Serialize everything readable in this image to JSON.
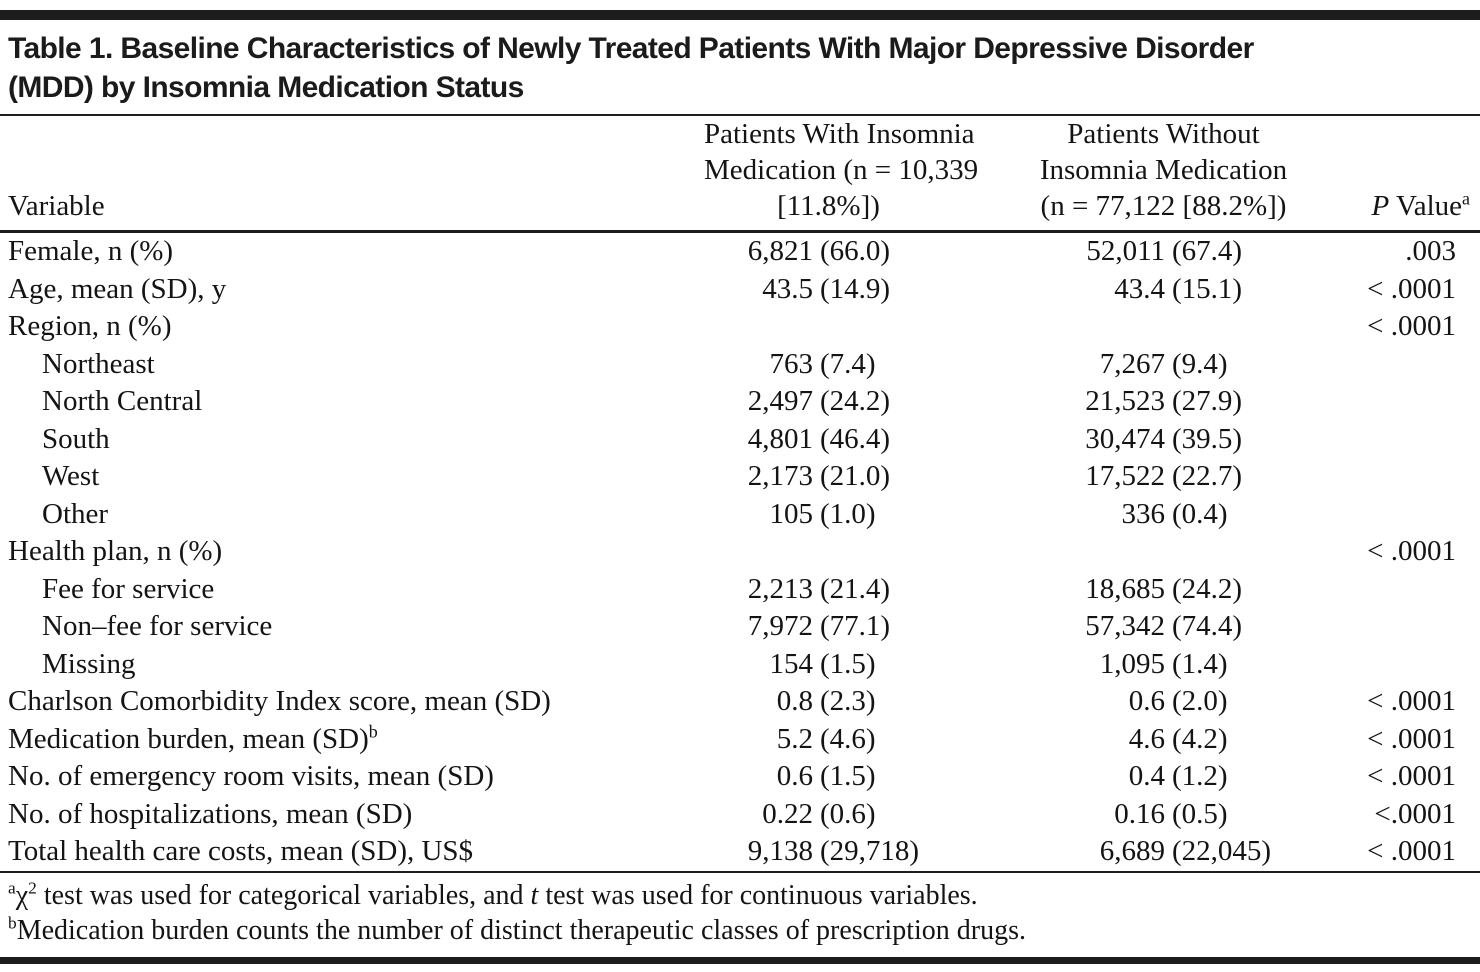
{
  "table": {
    "title_line1": "Table 1. Baseline Characteristics of Newly Treated Patients With Major Depressive Disorder",
    "title_line2": "(MDD) by Insomnia Medication Status",
    "columns": {
      "variable": "Variable",
      "with_med_lines": [
        "Patients With Insomnia",
        "Medication (n = 10,339",
        "[11.8%])"
      ],
      "without_med_lines": [
        "Patients Without",
        "Insomnia Medication",
        "(n = 77,122 [88.2%])"
      ],
      "p_italic": "P",
      "p_rest": " Value",
      "p_sup": "a"
    },
    "rows": [
      {
        "label": "Female, n (%)",
        "label_sup": "",
        "with_n": "6,821",
        "with_p": "(66.0)",
        "without_n": "52,011",
        "without_p": "(67.4)",
        "pvalue": ".003"
      },
      {
        "label": "Age, mean (SD), y",
        "label_sup": "",
        "with_n": "43.5",
        "with_p": "(14.9)",
        "without_n": "43.4",
        "without_p": "(15.1)",
        "pvalue": "< .0001"
      },
      {
        "label": "Region, n (%)",
        "label_sup": "",
        "with_n": "",
        "with_p": "",
        "without_n": "",
        "without_p": "",
        "pvalue": "< .0001"
      },
      {
        "label": "Northeast",
        "label_sup": "",
        "with_n": "763",
        "with_p": "(7.4)",
        "without_n": "7,267",
        "without_p": "(9.4)",
        "pvalue": ""
      },
      {
        "label": "North Central",
        "label_sup": "",
        "with_n": "2,497",
        "with_p": "(24.2)",
        "without_n": "21,523",
        "without_p": "(27.9)",
        "pvalue": ""
      },
      {
        "label": "South",
        "label_sup": "",
        "with_n": "4,801",
        "with_p": "(46.4)",
        "without_n": "30,474",
        "without_p": "(39.5)",
        "pvalue": ""
      },
      {
        "label": "West",
        "label_sup": "",
        "with_n": "2,173",
        "with_p": "(21.0)",
        "without_n": "17,522",
        "without_p": "(22.7)",
        "pvalue": ""
      },
      {
        "label": "Other",
        "label_sup": "",
        "with_n": "105",
        "with_p": "(1.0)",
        "without_n": "336",
        "without_p": "(0.4)",
        "pvalue": ""
      },
      {
        "label": "Health plan, n (%)",
        "label_sup": "",
        "with_n": "",
        "with_p": "",
        "without_n": "",
        "without_p": "",
        "pvalue": "< .0001"
      },
      {
        "label": "Fee for service",
        "label_sup": "",
        "with_n": "2,213",
        "with_p": "(21.4)",
        "without_n": "18,685",
        "without_p": "(24.2)",
        "pvalue": ""
      },
      {
        "label": "Non–fee for service",
        "label_sup": "",
        "with_n": "7,972",
        "with_p": "(77.1)",
        "without_n": "57,342",
        "without_p": "(74.4)",
        "pvalue": ""
      },
      {
        "label": "Missing",
        "label_sup": "",
        "with_n": "154",
        "with_p": "(1.5)",
        "without_n": "1,095",
        "without_p": "(1.4)",
        "pvalue": ""
      },
      {
        "label": "Charlson Comorbidity Index score, mean (SD)",
        "label_sup": "",
        "with_n": "0.8",
        "with_p": "(2.3)",
        "without_n": "0.6",
        "without_p": "(2.0)",
        "pvalue": "< .0001"
      },
      {
        "label": "Medication burden, mean (SD)",
        "label_sup": "b",
        "with_n": "5.2",
        "with_p": "(4.6)",
        "without_n": "4.6",
        "without_p": "(4.2)",
        "pvalue": "< .0001"
      },
      {
        "label": "No. of emergency room visits, mean (SD)",
        "label_sup": "",
        "with_n": "0.6",
        "with_p": "(1.5)",
        "without_n": "0.4",
        "without_p": "(1.2)",
        "pvalue": "< .0001"
      },
      {
        "label": "No. of hospitalizations, mean (SD)",
        "label_sup": "",
        "with_n": "0.22",
        "with_p": "(0.6)",
        "without_n": "0.16",
        "without_p": "(0.5)",
        "pvalue": "<.0001"
      },
      {
        "label": "Total health care costs, mean (SD), US$",
        "label_sup": "",
        "with_n": "9,138",
        "with_p": "(29,718)",
        "without_n": "6,689",
        "without_p": "(22,045)",
        "pvalue": "< .0001"
      }
    ],
    "footnote_a": {
      "marker": "a",
      "chi": "χ",
      "chi_sup": "2",
      "mid": " test was used for categorical variables, and ",
      "italic_t": "t",
      "end": " test was used for continuous variables."
    },
    "footnote_b": {
      "marker": "b",
      "text": "Medication burden counts the number of distinct therapeutic classes of prescription drugs."
    }
  }
}
